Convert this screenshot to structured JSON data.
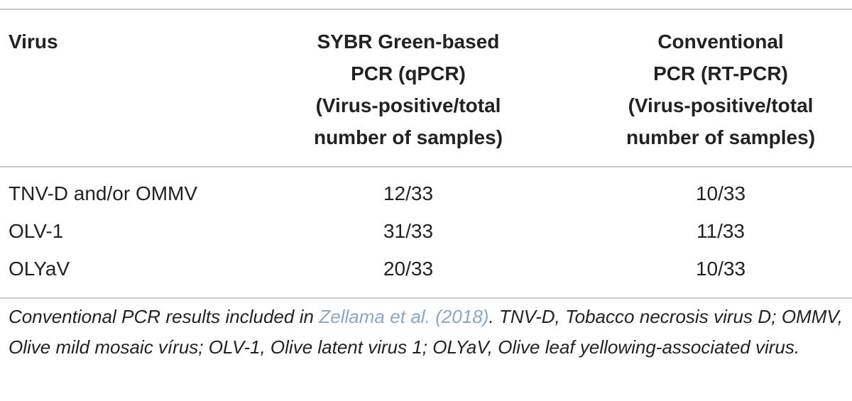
{
  "table": {
    "headers": [
      [
        "Virus"
      ],
      [
        "SYBR Green-based",
        "PCR (qPCR)",
        "(Virus-positive/total",
        "number of samples)"
      ],
      [
        "Conventional",
        "PCR (RT-PCR)",
        "(Virus-positive/total",
        "number of samples)"
      ]
    ],
    "rows": [
      [
        "TNV-D and/or OMMV",
        "12/33",
        "10/33"
      ],
      [
        "OLV-1",
        "31/33",
        "11/33"
      ],
      [
        "OLYaV",
        "20/33",
        "10/33"
      ]
    ]
  },
  "footnote": {
    "before": "Conventional PCR results included in ",
    "link": "Zellama et al. (2018)",
    "after": ". TNV-D, Tobacco necrosis virus D; OMMV, Olive mild mosaic vírus; OLV-1, Olive latent virus 1; OLYaV, Olive leaf yellowing-associated virus."
  }
}
